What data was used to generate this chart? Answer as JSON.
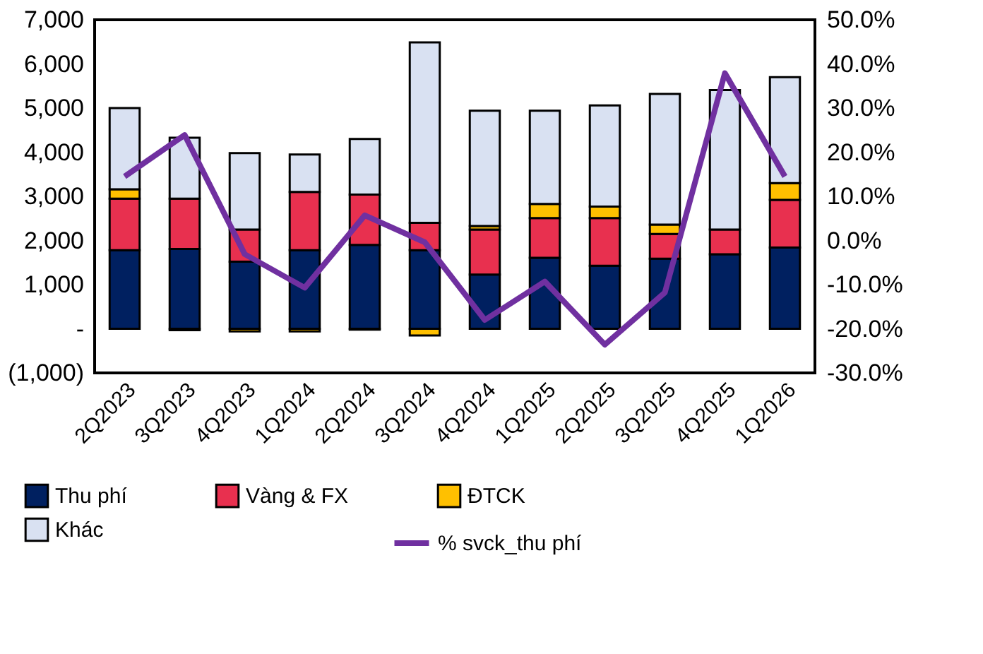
{
  "chart_data": {
    "type": "bar",
    "stacked": true,
    "categories": [
      "2Q2023",
      "3Q2023",
      "4Q2023",
      "1Q2024",
      "2Q2024",
      "3Q2024",
      "4Q2024",
      "1Q2025",
      "2Q2025",
      "3Q2025",
      "4Q2025",
      "1Q2026"
    ],
    "series": [
      {
        "name": "Thu phí",
        "color": "#002060",
        "values": [
          1780,
          1810,
          1520,
          1780,
          1900,
          1780,
          1230,
          1610,
          1430,
          1590,
          1690,
          1840
        ]
      },
      {
        "name": "Vàng & FX",
        "color": "#e8304f",
        "values": [
          1170,
          1140,
          730,
          1320,
          1140,
          620,
          1020,
          900,
          1080,
          560,
          560,
          1080
        ]
      },
      {
        "name": "ĐTCK",
        "color": "#ffc000",
        "values": [
          210,
          -30,
          -60,
          -60,
          -20,
          -150,
          80,
          320,
          260,
          210,
          null,
          380
        ]
      },
      {
        "name": "Khác",
        "color": "#d9e1f2",
        "values": [
          1840,
          1380,
          1730,
          850,
          1260,
          4090,
          2610,
          2110,
          2290,
          2960,
          3160,
          2400
        ]
      },
      {
        "name": "% svck_thu phí",
        "type": "line",
        "axis": "y2",
        "line_style": "solid",
        "color": "#7030a0",
        "values": [
          14.5,
          23.9,
          -3.1,
          -10.7,
          5.7,
          -0.4,
          -18.0,
          -9.3,
          -23.6,
          -11.8,
          37.9,
          14.5
        ]
      }
    ],
    "ylim": [
      -1000,
      7000
    ],
    "yticks": [
      {
        "value": -1000,
        "label": "(1,000)"
      },
      {
        "value": 0,
        "label": "-"
      },
      {
        "value": 1000,
        "label": "1,000"
      },
      {
        "value": 2000,
        "label": "2,000"
      },
      {
        "value": 3000,
        "label": "3,000"
      },
      {
        "value": 4000,
        "label": "4,000"
      },
      {
        "value": 5000,
        "label": "5,000"
      },
      {
        "value": 6000,
        "label": "6,000"
      },
      {
        "value": 7000,
        "label": "7,000"
      }
    ],
    "y2lim": [
      -30,
      50
    ],
    "y2ticks": [
      {
        "value": -30,
        "label": "-30.0%"
      },
      {
        "value": -20,
        "label": "-20.0%"
      },
      {
        "value": -10,
        "label": "-10.0%"
      },
      {
        "value": 0,
        "label": "0.0%"
      },
      {
        "value": 10,
        "label": "10.0%"
      },
      {
        "value": 20,
        "label": "20.0%"
      },
      {
        "value": 30,
        "label": "30.0%"
      },
      {
        "value": 40,
        "label": "40.0%"
      },
      {
        "value": 50,
        "label": "50.0%"
      }
    ],
    "grid": false,
    "legend": "bottom"
  }
}
